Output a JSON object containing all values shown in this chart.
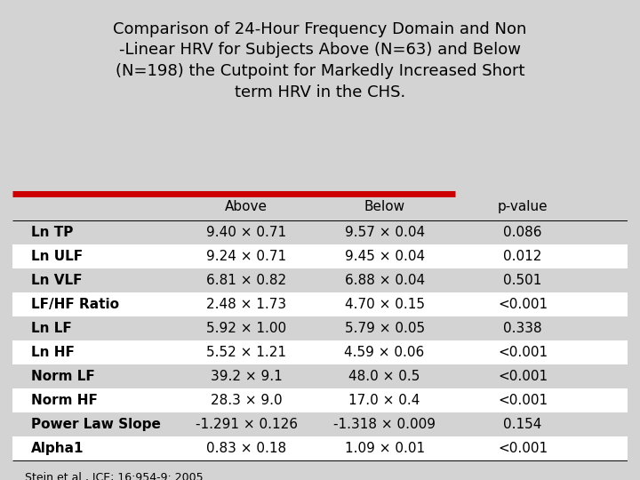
{
  "title": "Comparison of 24-Hour Frequency Domain and Non\n-Linear HRV for Subjects Above (N=63) and Below\n(N=198) the Cutpoint for Markedly Increased Short\nterm HRV in the CHS.",
  "col_headers": [
    "",
    "Above",
    "Below",
    "p-value"
  ],
  "rows": [
    [
      "Ln TP",
      "9.40 × 0.71",
      "9.57 × 0.04",
      "0.086"
    ],
    [
      "Ln ULF",
      "9.24 × 0.71",
      "9.45 × 0.04",
      "0.012"
    ],
    [
      "Ln VLF",
      "6.81 × 0.82",
      "6.88 × 0.04",
      "0.501"
    ],
    [
      "LF/HF Ratio",
      "2.48 × 1.73",
      "4.70 × 0.15",
      "<0.001"
    ],
    [
      "Ln LF",
      "5.92 × 1.00",
      "5.79 × 0.05",
      "0.338"
    ],
    [
      "Ln HF",
      "5.52 × 1.21",
      "4.59 × 0.06",
      "<0.001"
    ],
    [
      "Norm LF",
      "39.2 × 9.1",
      "48.0 × 0.5",
      "<0.001"
    ],
    [
      "Norm HF",
      "28.3 × 9.0",
      "17.0 × 0.4",
      "<0.001"
    ],
    [
      "Power Law Slope",
      "-1.291 × 0.126",
      "-1.318 × 0.009",
      "0.154"
    ],
    [
      "Alpha1",
      "0.83 × 0.18",
      "1.09 × 0.01",
      "<0.001"
    ]
  ],
  "footnote": "Stein et al., JCE; 16:954-9: 2005",
  "bg_color": "#d3d3d3",
  "title_color": "#000000",
  "red_bar_color": "#cc0000",
  "row_bg_even": "#ffffff",
  "row_bg_odd": "#d3d3d3",
  "title_fontsize": 13,
  "table_fontsize": 11,
  "footnote_fontsize": 9
}
